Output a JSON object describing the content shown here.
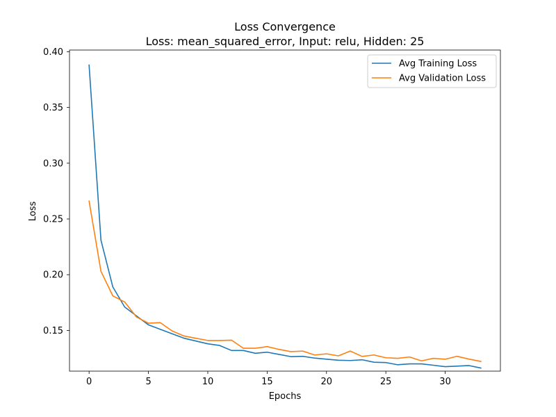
{
  "chart_data": {
    "type": "line",
    "title": "Loss Convergence",
    "subtitle": "Loss: mean_squared_error, Input: relu, Hidden: 25",
    "xlabel": "Epochs",
    "ylabel": "Loss",
    "xlim": [
      -1.65,
      34.65
    ],
    "ylim": [
      0.1135,
      0.4015
    ],
    "x_ticks": [
      0,
      5,
      10,
      15,
      20,
      25,
      30
    ],
    "y_ticks": [
      0.15,
      0.2,
      0.25,
      0.3,
      0.35,
      0.4
    ],
    "x_tick_labels": [
      "0",
      "5",
      "10",
      "15",
      "20",
      "25",
      "30"
    ],
    "y_tick_labels": [
      "0.15",
      "0.20",
      "0.25",
      "0.30",
      "0.35",
      "0.40"
    ],
    "grid": false,
    "legend_position": "top-right",
    "x": [
      0,
      1,
      2,
      3,
      4,
      5,
      6,
      7,
      8,
      9,
      10,
      11,
      12,
      13,
      14,
      15,
      16,
      17,
      18,
      19,
      20,
      21,
      22,
      23,
      24,
      25,
      26,
      27,
      28,
      29,
      30,
      31,
      32,
      33
    ],
    "series": [
      {
        "name": "Avg Training Loss",
        "color": "#1f77b4",
        "values": [
          0.388,
          0.231,
          0.189,
          0.171,
          0.163,
          0.155,
          0.151,
          0.147,
          0.143,
          0.1405,
          0.138,
          0.1365,
          0.132,
          0.132,
          0.1295,
          0.1305,
          0.1285,
          0.1265,
          0.1268,
          0.1252,
          0.1242,
          0.1233,
          0.123,
          0.1237,
          0.1215,
          0.1212,
          0.1192,
          0.12,
          0.12,
          0.1188,
          0.1175,
          0.118,
          0.1185,
          0.1163
        ]
      },
      {
        "name": "Avg Validation Loss",
        "color": "#ff7f0e",
        "values": [
          0.266,
          0.203,
          0.181,
          0.1755,
          0.162,
          0.1565,
          0.157,
          0.1495,
          0.145,
          0.143,
          0.141,
          0.141,
          0.1413,
          0.134,
          0.134,
          0.1355,
          0.133,
          0.131,
          0.1315,
          0.128,
          0.129,
          0.1272,
          0.1315,
          0.1267,
          0.128,
          0.1255,
          0.125,
          0.1262,
          0.1227,
          0.125,
          0.1242,
          0.1268,
          0.1243,
          0.1222
        ]
      }
    ]
  }
}
